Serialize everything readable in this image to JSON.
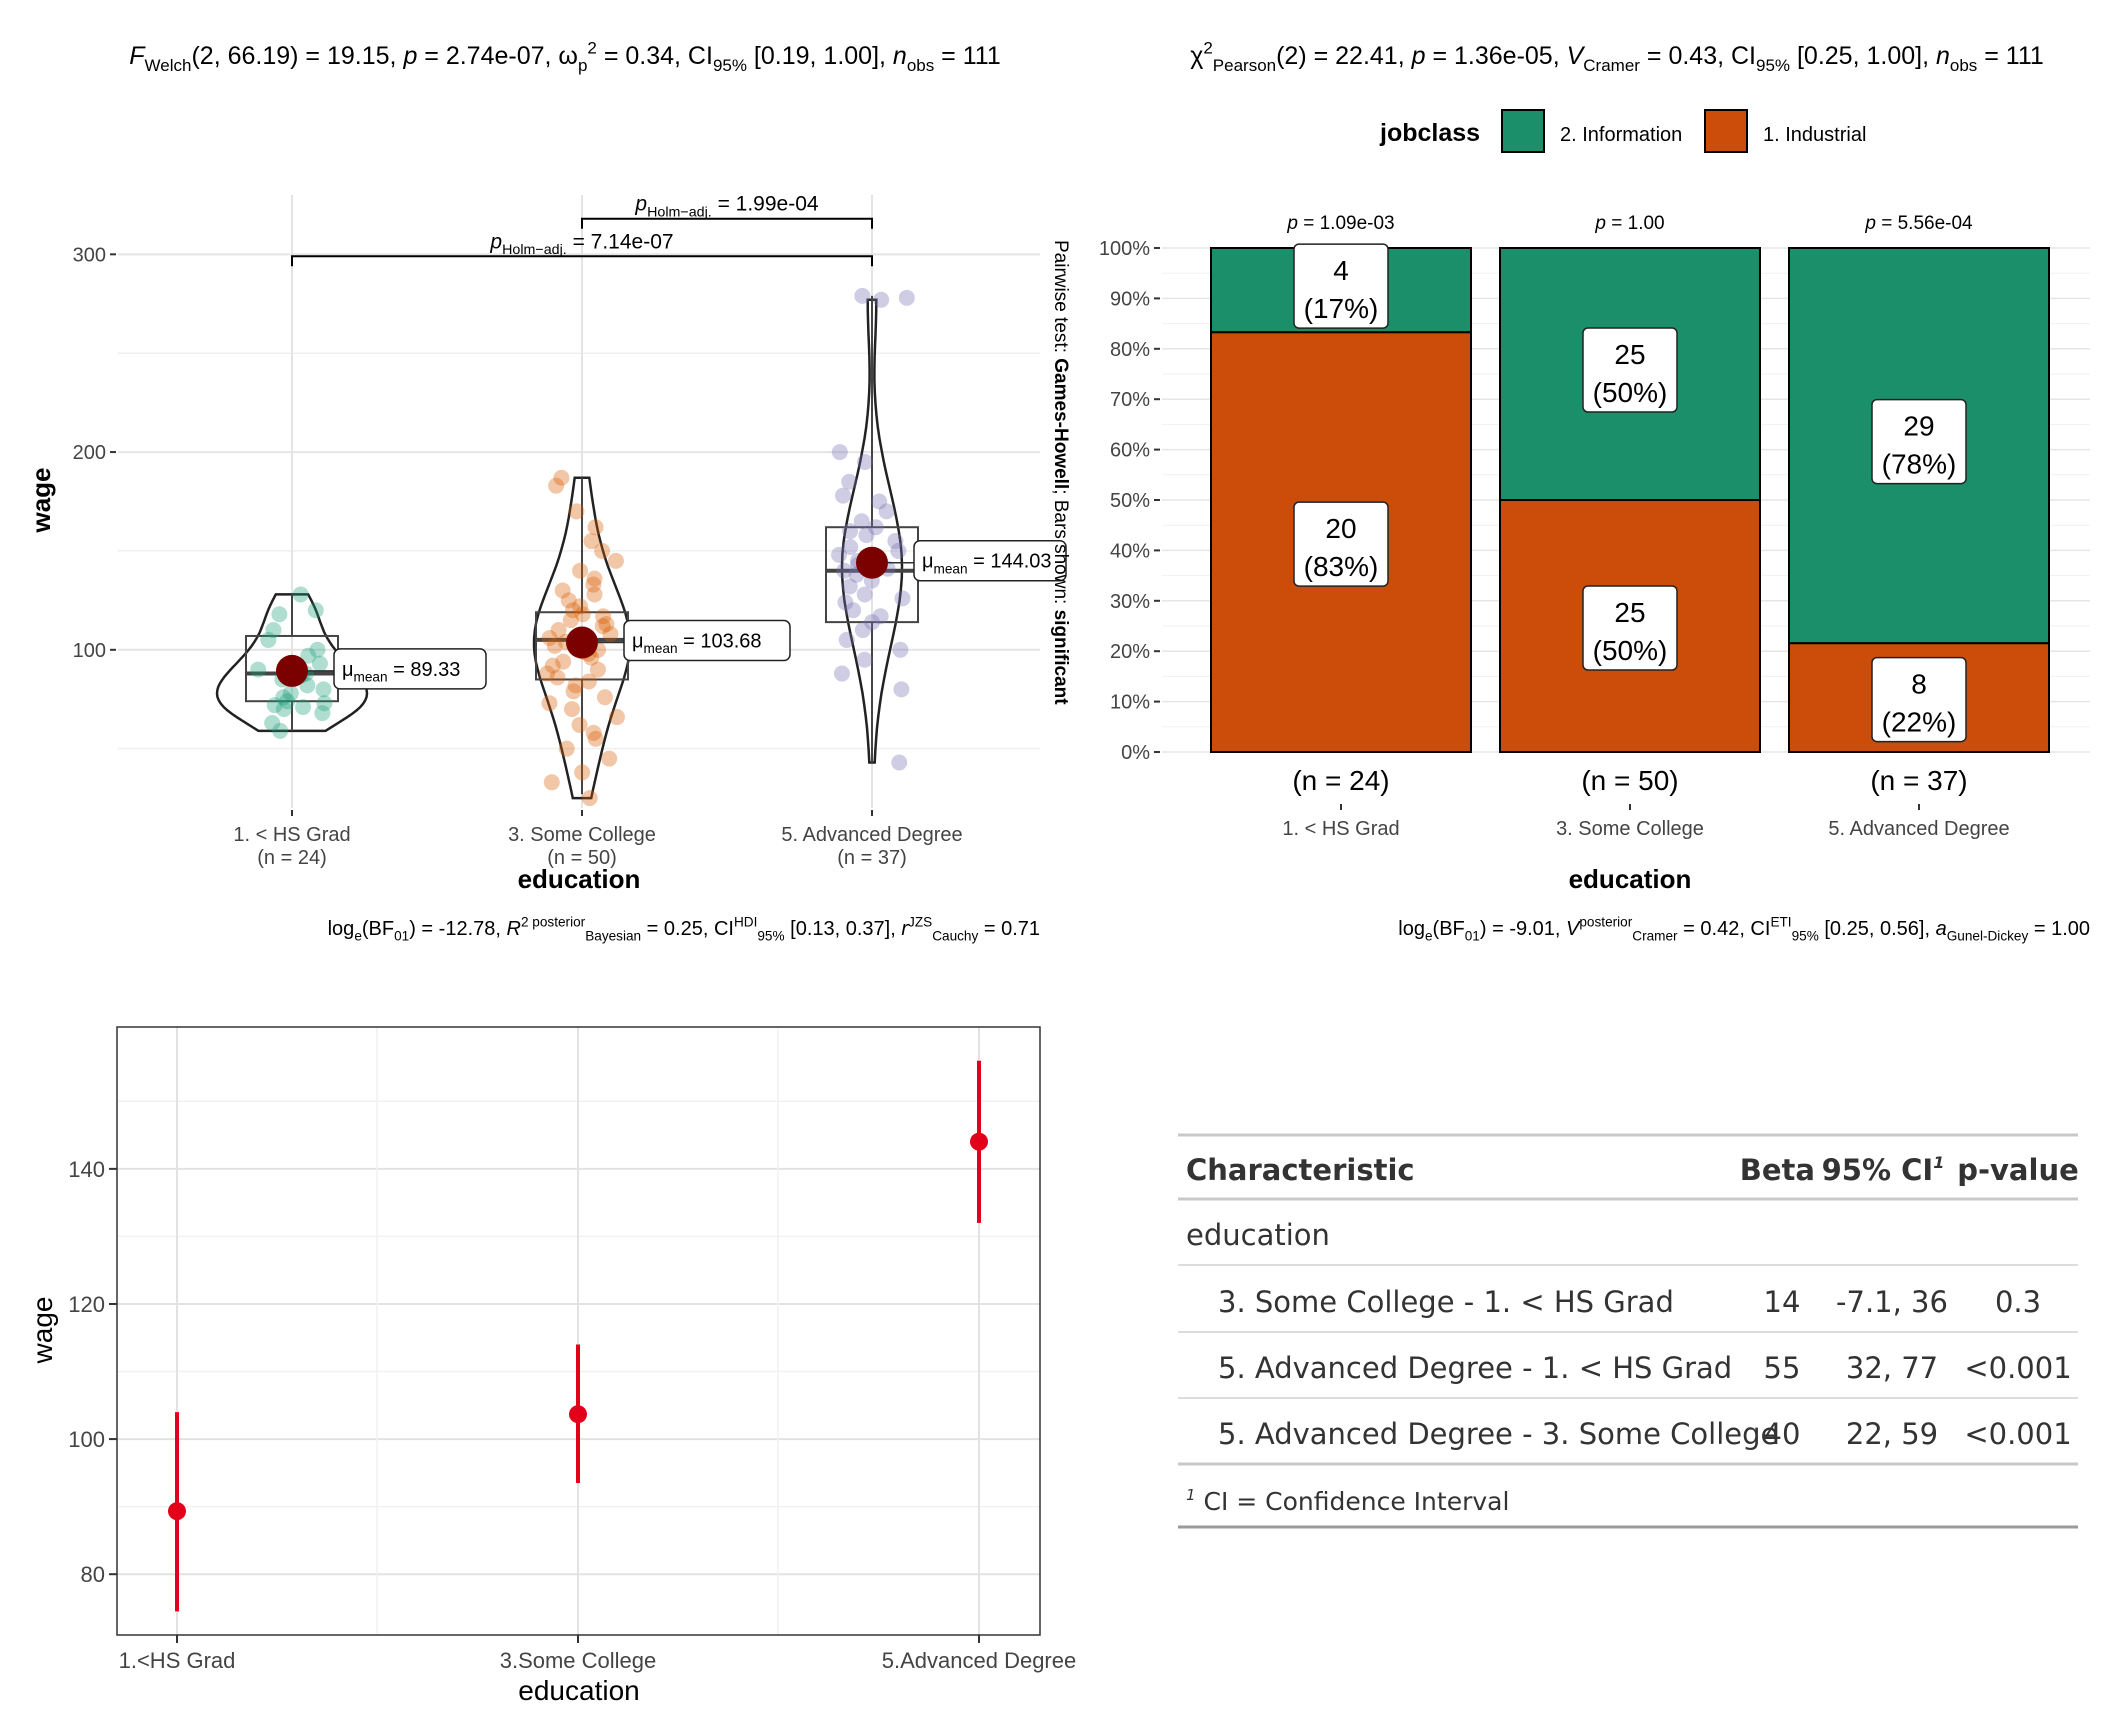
{
  "chart_data": [
    {
      "type": "violin-box-scatter",
      "subtitle": {
        "welch_prefix": "F",
        "welch_sub": "Welch",
        "welch_args": "(2, 66.19) = 19.15, ",
        "p_label": "p",
        "p_value": " = 2.74e-07, ",
        "omega_sym": "ω",
        "omega_sub": "p",
        "omega_sup": "2",
        "omega_value": " = 0.34, CI",
        "ci_sub": "95%",
        "ci_value": " [0.19, 1.00], ",
        "n_label": "n",
        "n_sub": "obs",
        "n_value": " = 111"
      },
      "xlabel": "education",
      "ylabel": "wage",
      "y_ticks": [
        100,
        200,
        300
      ],
      "ylim": [
        20,
        330
      ],
      "groups": [
        {
          "label": "1. < HS Grad",
          "n_label": "(n = 24)",
          "color": "#1B9E77",
          "mean": 89.33,
          "mean_label": "= 89.33",
          "q1": 74,
          "median": 88,
          "q3": 107,
          "whisker_low": 59,
          "whisker_high": 128,
          "points": [
            59,
            63,
            68,
            70,
            71,
            72,
            73,
            74,
            76,
            78,
            80,
            82,
            85,
            87,
            88,
            90,
            93,
            97,
            100,
            105,
            110,
            118,
            120,
            128
          ]
        },
        {
          "label": "3. Some College",
          "n_label": "(n = 50)",
          "color": "#D95F02",
          "mean": 103.68,
          "mean_label": "= 103.68",
          "q1": 85,
          "median": 105,
          "q3": 119,
          "whisker_low": 27,
          "whisker_high": 187,
          "points": [
            25,
            33,
            38,
            45,
            50,
            55,
            58,
            62,
            66,
            70,
            73,
            76,
            79,
            82,
            84,
            86,
            88,
            90,
            92,
            94,
            96,
            98,
            99,
            100,
            102,
            104,
            105,
            106,
            108,
            110,
            112,
            113,
            115,
            117,
            118,
            120,
            122,
            125,
            128,
            130,
            133,
            136,
            140,
            145,
            150,
            155,
            162,
            170,
            183,
            187
          ]
        },
        {
          "label": "5. Advanced Degree",
          "n_label": "(n = 37)",
          "color": "#7570B3",
          "mean": 144.03,
          "mean_label": "= 144.03",
          "q1": 114,
          "median": 140,
          "q3": 162,
          "whisker_low": 43,
          "whisker_high": 279,
          "points": [
            43,
            80,
            88,
            95,
            100,
            105,
            110,
            114,
            117,
            120,
            124,
            126,
            128,
            132,
            135,
            138,
            140,
            141,
            143,
            145,
            148,
            150,
            152,
            155,
            158,
            160,
            162,
            165,
            170,
            175,
            178,
            185,
            195,
            200,
            278,
            279,
            277
          ]
        }
      ],
      "mean_symbol": "μ",
      "mean_sub": "mean",
      "pairwise": [
        {
          "from": 1,
          "to": 2,
          "y": 318,
          "label_p": "p",
          "label_sub": "Holm−adj.",
          "label_value": " = 1.99e-04"
        },
        {
          "from": 0,
          "to": 2,
          "y": 299,
          "label_p": "p",
          "label_sub": "Holm−adj.",
          "label_value": " = 7.14e-07"
        }
      ],
      "side_caption_a": "Pairwise test: ",
      "side_caption_b": "Games-Howell",
      "side_caption_c": "; Bars shown: ",
      "side_caption_d": "significant",
      "caption": {
        "log": "log",
        "log_sub": "e",
        "bf": "(BF",
        "bf_sub": "01",
        "bf_val": ") = -12.78, ",
        "r": "R",
        "r_sup": "2 posterior",
        "r_sub": "Bayesian",
        "r_val": " = 0.25, CI",
        "ci_sup": "HDI",
        "ci_sub": "95%",
        "ci_val": " [0.13, 0.37], ",
        "rc": "r",
        "rc_sup": "JZS",
        "rc_sub": "Cauchy",
        "rc_val": " = 0.71"
      }
    },
    {
      "type": "stacked-bar",
      "subtitle": {
        "chi": "χ",
        "chi_sup": "2",
        "chi_sub": "Pearson",
        "chi_val": "(2) = 22.41, ",
        "p": "p",
        "p_val": " = 1.36e-05, ",
        "v": "V",
        "v_sub": "Cramer",
        "v_val": " = 0.43, CI",
        "ci_sub": "95%",
        "ci_val": " [0.25, 1.00], ",
        "n": "n",
        "n_sub": "obs",
        "n_val": " = 111"
      },
      "legend_title": "jobclass",
      "legend": [
        {
          "name": "2. Information",
          "color": "#1B8F6A"
        },
        {
          "name": "1. Industrial",
          "color": "#CC4C0A"
        }
      ],
      "xlabel": "education",
      "y_ticks": [
        "0%",
        "10%",
        "20%",
        "30%",
        "40%",
        "50%",
        "60%",
        "70%",
        "80%",
        "90%",
        "100%"
      ],
      "categories": [
        "1. < HS Grad",
        "3. Some College",
        "5. Advanced Degree"
      ],
      "n_labels": [
        "(n = 24)",
        "(n = 50)",
        "(n = 37)"
      ],
      "p_labels": [
        " = 1.09e-03",
        " = 1.00",
        " = 5.56e-04"
      ],
      "p_prefix": "p",
      "series": [
        {
          "name": "1. Industrial",
          "counts": [
            20,
            25,
            8
          ],
          "pct_labels": [
            "(83%)",
            "(50%)",
            "(22%)"
          ],
          "fractions": [
            0.833,
            0.5,
            0.216
          ]
        },
        {
          "name": "2. Information",
          "counts": [
            4,
            25,
            29
          ],
          "pct_labels": [
            "(17%)",
            "(50%)",
            "(78%)"
          ],
          "fractions": [
            0.167,
            0.5,
            0.784
          ]
        }
      ],
      "caption": {
        "log": "log",
        "log_sub": "e",
        "bf": "(BF",
        "bf_sub": "01",
        "bf_val": ") = -9.01, ",
        "v": "V",
        "v_sup": "posterior",
        "v_sub": "Cramer",
        "v_val": " = 0.42, CI",
        "ci_sup": "ETI",
        "ci_sub": "95%",
        "ci_val": " [0.25, 0.56], ",
        "a": "a",
        "a_sub": "Gunel-Dickey",
        "a_val": " = 1.00"
      }
    },
    {
      "type": "pointrange",
      "xlabel": "education",
      "ylabel": "wage",
      "categories": [
        "1.<HS Grad",
        "3.Some College",
        "5.Advanced Degree"
      ],
      "y_ticks": [
        80,
        100,
        120,
        140
      ],
      "ylim": [
        71,
        161
      ],
      "color": "#E3001B",
      "values": [
        89.33,
        103.68,
        144.03
      ],
      "lower": [
        74.5,
        93.5,
        132.0
      ],
      "upper": [
        104.0,
        114.0,
        156.0
      ]
    }
  ],
  "table": {
    "headers": [
      "Characteristic",
      "Beta",
      "95% CI",
      "p-value"
    ],
    "ci_footnote_mark": "1",
    "group_label": "education",
    "rows": [
      {
        "label": "3. Some College - 1. < HS Grad",
        "beta": "14",
        "ci": "-7.1, 36",
        "p": "0.3"
      },
      {
        "label": "5. Advanced Degree - 1. < HS Grad",
        "beta": "55",
        "ci": "32, 77",
        "p": "<0.001"
      },
      {
        "label": "5. Advanced Degree - 3. Some College",
        "beta": "40",
        "ci": "22, 59",
        "p": "<0.001"
      }
    ],
    "footnote_mark": "1",
    "footnote": "CI = Confidence Interval"
  }
}
